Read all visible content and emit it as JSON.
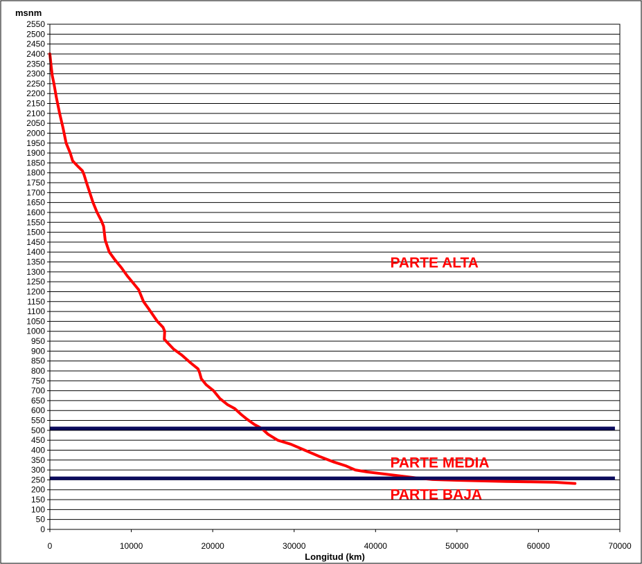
{
  "chart_data": {
    "type": "line",
    "title": "",
    "xlabel": "Longitud (km)",
    "ylabel": "msnm",
    "xlim": [
      0,
      70000
    ],
    "ylim": [
      0,
      2550
    ],
    "x_ticks": [
      0,
      10000,
      20000,
      30000,
      40000,
      50000,
      60000,
      70000
    ],
    "x_tick_labels": [
      "0",
      "10000",
      "20000",
      "30000",
      "40000",
      "50000",
      "60000",
      "70000"
    ],
    "y_tick_step": 50,
    "grid": "horizontal",
    "legend": "none",
    "series": [
      {
        "color": "#ff0000",
        "x": [
          0,
          150,
          300,
          500,
          800,
          1200,
          1600,
          2000,
          2500,
          2800,
          3500,
          4000,
          4200,
          4500,
          4900,
          5300,
          5800,
          6300,
          6600,
          6800,
          7300,
          8000,
          8800,
          9500,
          10300,
          10900,
          11500,
          12200,
          13200,
          13900,
          14100,
          14050,
          14500,
          15200,
          16200,
          17300,
          18200,
          18400,
          18600,
          19200,
          20100,
          20900,
          21800,
          22700,
          23500,
          24100,
          25100,
          26000,
          26800,
          28000,
          29600,
          31300,
          33000,
          34900,
          36400,
          37500,
          39000,
          41000,
          43000,
          45000,
          47000,
          50000,
          53000,
          56000,
          59000,
          62000,
          64500
        ],
        "y": [
          2400,
          2340,
          2290,
          2250,
          2180,
          2100,
          2030,
          1950,
          1900,
          1860,
          1830,
          1810,
          1790,
          1750,
          1700,
          1650,
          1600,
          1560,
          1530,
          1460,
          1400,
          1360,
          1320,
          1280,
          1240,
          1210,
          1150,
          1110,
          1050,
          1020,
          1000,
          960,
          940,
          910,
          880,
          840,
          810,
          790,
          760,
          730,
          700,
          660,
          630,
          610,
          580,
          560,
          530,
          510,
          480,
          450,
          430,
          400,
          370,
          340,
          320,
          300,
          290,
          280,
          270,
          260,
          252,
          248,
          245,
          242,
          240,
          238,
          232
        ]
      },
      {
        "color": "#0a0a5c",
        "x": [
          0,
          69400
        ],
        "y": [
          510,
          510
        ]
      },
      {
        "color": "#0a0a5c",
        "x": [
          0,
          69400
        ],
        "y": [
          258,
          258
        ]
      }
    ],
    "annotations": [
      {
        "text": "PARTE ALTA",
        "x": 41800,
        "y": 1350
      },
      {
        "text": "PARTE MEDIA",
        "x": 41800,
        "y": 340
      },
      {
        "text": "PARTE BAJA",
        "x": 41800,
        "y": 180
      }
    ]
  }
}
